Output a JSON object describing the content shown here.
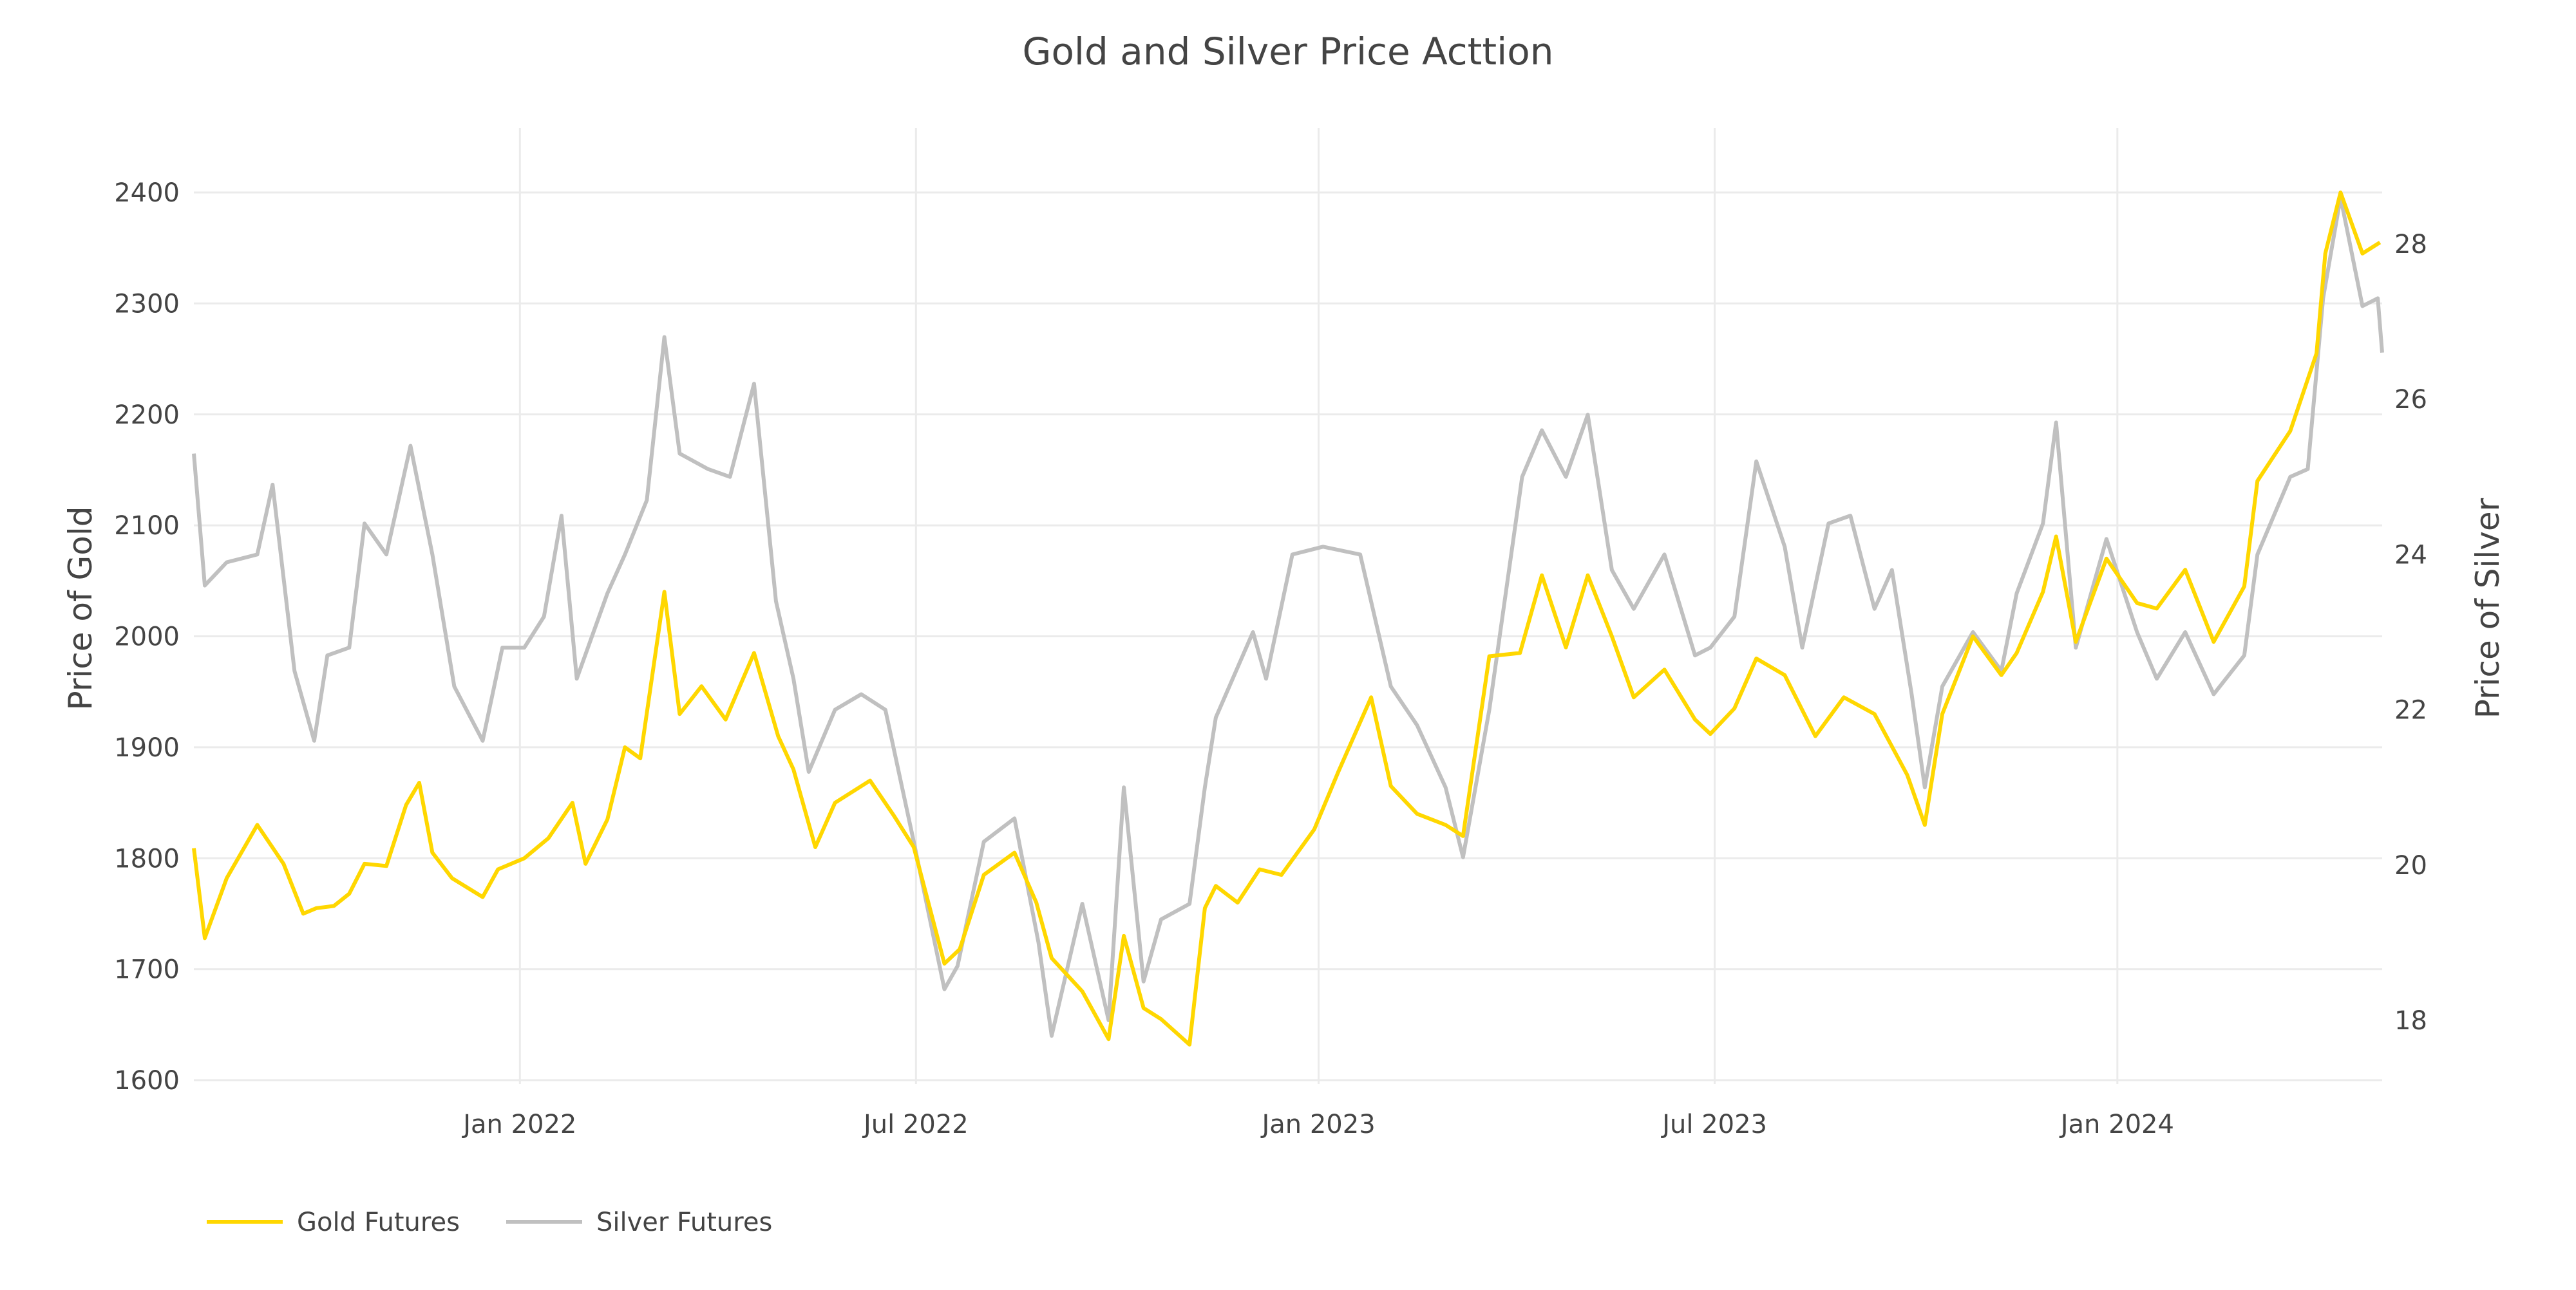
{
  "chart_data": {
    "type": "line",
    "title": "Gold and Silver Price Acttion",
    "xlabel": "",
    "ylabel": "Price of Gold",
    "y2label": "Price of Silver",
    "x_range": [
      "2021-08-05",
      "2024-05-01"
    ],
    "ylim": [
      1585,
      2425
    ],
    "y2lim": [
      17.2,
      29.3
    ],
    "x_ticks": [
      {
        "date": "2022-01-01",
        "label": "Jan 2022"
      },
      {
        "date": "2022-07-01",
        "label": "Jul 2022"
      },
      {
        "date": "2023-01-01",
        "label": "Jan 2023"
      },
      {
        "date": "2023-07-01",
        "label": "Jul 2023"
      },
      {
        "date": "2024-01-01",
        "label": "Jan 2024"
      }
    ],
    "y_ticks": [
      1600,
      1700,
      1800,
      1900,
      2000,
      2100,
      2200,
      2300,
      2400
    ],
    "y2_ticks": [
      18,
      20,
      22,
      24,
      26,
      28
    ],
    "grid": true,
    "legend": {
      "placement": "bottom-left",
      "orientation": "horizontal"
    },
    "series": [
      {
        "name": "Gold Futures",
        "axis": "left",
        "color": "#FFD700",
        "x": [
          "2021-08-05",
          "2021-08-10",
          "2021-08-20",
          "2021-09-03",
          "2021-09-15",
          "2021-09-24",
          "2021-09-30",
          "2021-10-08",
          "2021-10-15",
          "2021-10-22",
          "2021-11-01",
          "2021-11-10",
          "2021-11-16",
          "2021-11-22",
          "2021-12-01",
          "2021-12-15",
          "2021-12-22",
          "2022-01-03",
          "2022-01-14",
          "2022-01-25",
          "2022-01-31",
          "2022-02-10",
          "2022-02-18",
          "2022-02-25",
          "2022-03-08",
          "2022-03-15",
          "2022-03-25",
          "2022-04-05",
          "2022-04-18",
          "2022-04-29",
          "2022-05-06",
          "2022-05-16",
          "2022-05-25",
          "2022-06-10",
          "2022-06-21",
          "2022-06-30",
          "2022-07-14",
          "2022-07-21",
          "2022-08-01",
          "2022-08-15",
          "2022-08-25",
          "2022-09-01",
          "2022-09-15",
          "2022-09-27",
          "2022-10-04",
          "2022-10-13",
          "2022-10-21",
          "2022-11-03",
          "2022-11-10",
          "2022-11-15",
          "2022-11-25",
          "2022-12-05",
          "2022-12-15",
          "2022-12-30",
          "2023-01-10",
          "2023-01-25",
          "2023-02-03",
          "2023-02-15",
          "2023-02-28",
          "2023-03-08",
          "2023-03-20",
          "2023-04-03",
          "2023-04-13",
          "2023-04-24",
          "2023-05-04",
          "2023-05-15",
          "2023-05-25",
          "2023-06-08",
          "2023-06-22",
          "2023-06-29",
          "2023-07-10",
          "2023-07-20",
          "2023-08-02",
          "2023-08-16",
          "2023-08-29",
          "2023-09-12",
          "2023-09-27",
          "2023-10-05",
          "2023-10-13",
          "2023-10-27",
          "2023-11-09",
          "2023-11-16",
          "2023-11-28",
          "2023-12-04",
          "2023-12-13",
          "2023-12-27",
          "2024-01-10",
          "2024-01-19",
          "2024-02-01",
          "2024-02-14",
          "2024-02-28",
          "2024-03-05",
          "2024-03-20",
          "2024-04-01",
          "2024-04-05",
          "2024-04-12",
          "2024-04-22",
          "2024-04-30"
        ],
        "y": [
          1809,
          1728,
          1782,
          1830,
          1795,
          1750,
          1755,
          1757,
          1768,
          1795,
          1793,
          1848,
          1868,
          1805,
          1782,
          1765,
          1790,
          1800,
          1818,
          1850,
          1795,
          1835,
          1900,
          1890,
          2040,
          1930,
          1955,
          1925,
          1985,
          1910,
          1880,
          1810,
          1850,
          1870,
          1838,
          1810,
          1705,
          1718,
          1785,
          1805,
          1760,
          1710,
          1680,
          1637,
          1730,
          1665,
          1655,
          1632,
          1755,
          1775,
          1760,
          1790,
          1785,
          1826,
          1878,
          1945,
          1865,
          1840,
          1830,
          1820,
          1982,
          1985,
          2055,
          1990,
          2055,
          2000,
          1945,
          1970,
          1925,
          1912,
          1935,
          1980,
          1965,
          1910,
          1945,
          1930,
          1875,
          1830,
          1930,
          2000,
          1965,
          1985,
          2040,
          2090,
          1995,
          2070,
          2030,
          2025,
          2060,
          1995,
          2045,
          2140,
          2185,
          2255,
          2345,
          2400,
          2345,
          2355
        ]
      },
      {
        "name": "Silver Futures",
        "axis": "right",
        "color": "#C0C0C0",
        "x": [
          "2021-08-05",
          "2021-08-10",
          "2021-08-20",
          "2021-09-03",
          "2021-09-10",
          "2021-09-20",
          "2021-09-29",
          "2021-10-05",
          "2021-10-15",
          "2021-10-22",
          "2021-11-01",
          "2021-11-12",
          "2021-11-22",
          "2021-12-02",
          "2021-12-15",
          "2021-12-24",
          "2022-01-03",
          "2022-01-12",
          "2022-01-20",
          "2022-01-27",
          "2022-02-10",
          "2022-02-18",
          "2022-02-28",
          "2022-03-08",
          "2022-03-15",
          "2022-03-28",
          "2022-04-07",
          "2022-04-18",
          "2022-04-28",
          "2022-05-06",
          "2022-05-13",
          "2022-05-25",
          "2022-06-06",
          "2022-06-17",
          "2022-06-30",
          "2022-07-14",
          "2022-07-20",
          "2022-08-01",
          "2022-08-15",
          "2022-08-26",
          "2022-09-01",
          "2022-09-15",
          "2022-09-27",
          "2022-10-04",
          "2022-10-13",
          "2022-10-21",
          "2022-11-03",
          "2022-11-10",
          "2022-11-15",
          "2022-12-02",
          "2022-12-08",
          "2022-12-20",
          "2023-01-03",
          "2023-01-20",
          "2023-02-03",
          "2023-02-15",
          "2023-02-28",
          "2023-03-08",
          "2023-03-20",
          "2023-04-04",
          "2023-04-13",
          "2023-04-24",
          "2023-05-04",
          "2023-05-15",
          "2023-05-25",
          "2023-06-08",
          "2023-06-22",
          "2023-06-29",
          "2023-07-10",
          "2023-07-20",
          "2023-08-02",
          "2023-08-10",
          "2023-08-22",
          "2023-09-01",
          "2023-09-12",
          "2023-09-20",
          "2023-09-29",
          "2023-10-05",
          "2023-10-13",
          "2023-10-27",
          "2023-11-09",
          "2023-11-16",
          "2023-11-28",
          "2023-12-04",
          "2023-12-13",
          "2023-12-27",
          "2024-01-10",
          "2024-01-19",
          "2024-02-01",
          "2024-02-14",
          "2024-02-28",
          "2024-03-05",
          "2024-03-20",
          "2024-03-28",
          "2024-04-04",
          "2024-04-12",
          "2024-04-22",
          "2024-04-29",
          "2024-05-01"
        ],
        "y": [
          25.3,
          23.6,
          23.9,
          24.0,
          24.9,
          22.5,
          21.6,
          22.7,
          22.8,
          24.4,
          24.0,
          25.4,
          24.0,
          22.3,
          21.6,
          22.8,
          22.8,
          23.2,
          24.5,
          22.4,
          23.5,
          24.0,
          24.7,
          26.8,
          25.3,
          25.1,
          25.0,
          26.2,
          23.4,
          22.4,
          21.2,
          22.0,
          22.2,
          22.0,
          20.3,
          18.4,
          18.7,
          20.3,
          20.6,
          19.0,
          17.8,
          19.5,
          18.0,
          21.0,
          18.5,
          19.3,
          19.5,
          21.0,
          21.9,
          23.0,
          22.4,
          24.0,
          24.1,
          24.0,
          22.3,
          21.8,
          21.0,
          20.1,
          22.0,
          25.0,
          25.6,
          25.0,
          25.8,
          23.8,
          23.3,
          24.0,
          22.7,
          22.8,
          23.2,
          25.2,
          24.1,
          22.8,
          24.4,
          24.5,
          23.3,
          23.8,
          22.2,
          21.0,
          22.3,
          23.0,
          22.5,
          23.5,
          24.4,
          25.7,
          22.8,
          24.2,
          23.0,
          22.4,
          23.0,
          22.2,
          22.7,
          24.0,
          25.0,
          25.1,
          27.3,
          28.6,
          27.2,
          27.3,
          26.6
        ]
      }
    ]
  }
}
